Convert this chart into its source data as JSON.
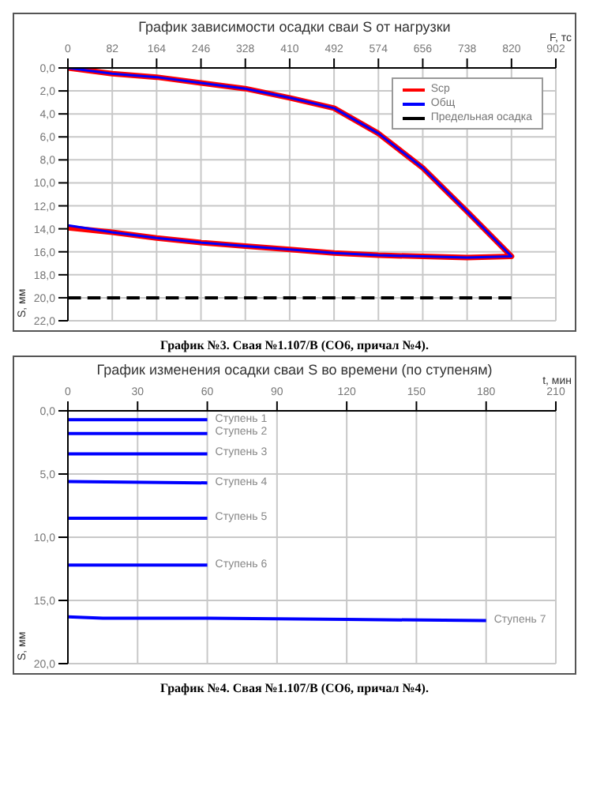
{
  "chart_data": [
    {
      "type": "line",
      "title": "График зависимости осадки сваи S от нагрузки",
      "xlabel": "F, тс",
      "ylabel": "S, мм",
      "xlim": [
        0,
        902
      ],
      "xticks": [
        0,
        82,
        164,
        246,
        328,
        410,
        492,
        574,
        656,
        738,
        820,
        902
      ],
      "ylim": [
        22,
        0
      ],
      "yticks": [
        {
          "value": 0,
          "label": "0,0"
        },
        {
          "value": 2,
          "label": "2,0"
        },
        {
          "value": 4,
          "label": "4,0"
        },
        {
          "value": 6,
          "label": "6,0"
        },
        {
          "value": 8,
          "label": "8,0"
        },
        {
          "value": 10,
          "label": "10,0"
        },
        {
          "value": 12,
          "label": "12,0"
        },
        {
          "value": 14,
          "label": "14,0"
        },
        {
          "value": 16,
          "label": "16,0"
        },
        {
          "value": 18,
          "label": "18,0"
        },
        {
          "value": 20,
          "label": "20,0"
        },
        {
          "value": 22,
          "label": "22,0"
        }
      ],
      "grid": true,
      "legend": "top right",
      "marker": "none",
      "series": [
        {
          "name": "Scp",
          "color": "#ff0000",
          "x": [
            0,
            82,
            164,
            246,
            328,
            410,
            492,
            574,
            656,
            738,
            820,
            738,
            656,
            574,
            492,
            410,
            328,
            246,
            164,
            82,
            0
          ],
          "values": [
            0,
            0.5,
            0.8,
            1.3,
            1.8,
            2.6,
            3.5,
            5.7,
            8.7,
            12.5,
            16.4,
            16.5,
            16.4,
            16.3,
            16.1,
            15.8,
            15.5,
            15.2,
            14.8,
            14.3,
            13.9
          ]
        },
        {
          "name": "Общ",
          "color": "#0000ff",
          "x": [
            0,
            82,
            164,
            246,
            328,
            410,
            492,
            574,
            656,
            738,
            820,
            738,
            656,
            574,
            492,
            410,
            328,
            246,
            164,
            82,
            0
          ],
          "values": [
            0,
            0.5,
            0.8,
            1.3,
            1.8,
            2.6,
            3.5,
            5.7,
            8.7,
            12.5,
            16.4,
            16.5,
            16.4,
            16.3,
            16.1,
            15.8,
            15.5,
            15.2,
            14.8,
            14.3,
            13.7
          ]
        },
        {
          "name": "Предельная осадка",
          "color": "#000000",
          "line_style": "dashed",
          "x": [
            0,
            820
          ],
          "values": [
            20,
            20
          ]
        }
      ],
      "annotations": [
        "График №3. Свая №1.107/В (СО6, причал №4)."
      ]
    },
    {
      "type": "line",
      "title": "График изменения осадки сваи S во времени (по ступеням)",
      "xlabel": "t, мин",
      "ylabel": "S, мм",
      "xlim": [
        0,
        210
      ],
      "xticks": [
        0,
        30,
        60,
        90,
        120,
        150,
        180,
        210
      ],
      "ylim": [
        20,
        0
      ],
      "yticks": [
        {
          "value": 0,
          "label": "0,0"
        },
        {
          "value": 5,
          "label": "5,0"
        },
        {
          "value": 10,
          "label": "10,0"
        },
        {
          "value": 15,
          "label": "15,0"
        },
        {
          "value": 20,
          "label": "20,0"
        }
      ],
      "grid": true,
      "marker": "none",
      "series": [
        {
          "name": "Ступень 1",
          "color": "#0000ff",
          "x": [
            0,
            60
          ],
          "values": [
            0.7,
            0.7
          ]
        },
        {
          "name": "Ступень 2",
          "color": "#0000ff",
          "x": [
            0,
            60
          ],
          "values": [
            1.8,
            1.8
          ]
        },
        {
          "name": "Ступень 3",
          "color": "#0000ff",
          "x": [
            0,
            60
          ],
          "values": [
            3.4,
            3.4
          ]
        },
        {
          "name": "Ступень 4",
          "color": "#0000ff",
          "x": [
            0,
            60
          ],
          "values": [
            5.6,
            5.7
          ]
        },
        {
          "name": "Ступень 5",
          "color": "#0000ff",
          "x": [
            0,
            60
          ],
          "values": [
            8.5,
            8.5
          ]
        },
        {
          "name": "Ступень 6",
          "color": "#0000ff",
          "x": [
            0,
            60
          ],
          "values": [
            12.2,
            12.2
          ]
        },
        {
          "name": "Ступень 7",
          "color": "#0000ff",
          "x": [
            0,
            15,
            60,
            120,
            180
          ],
          "values": [
            16.3,
            16.4,
            16.4,
            16.5,
            16.6
          ]
        }
      ],
      "annotations": [
        "График №4. Свая №1.107/В (СО6, причал №4)."
      ]
    }
  ]
}
